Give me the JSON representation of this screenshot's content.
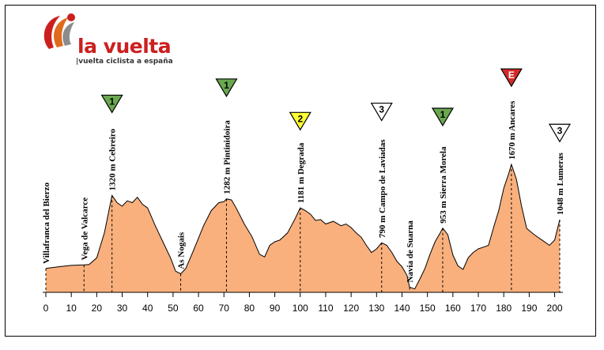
{
  "brand": {
    "name": "la vuelta",
    "tagline": "|vuelta ciclista a españa"
  },
  "chart_data": {
    "type": "area",
    "title": "",
    "xlabel": "",
    "ylabel": "",
    "xlim": [
      0,
      202
    ],
    "x_ticks": [
      0,
      10,
      20,
      30,
      40,
      50,
      60,
      70,
      80,
      90,
      100,
      110,
      120,
      130,
      140,
      150,
      160,
      170,
      180,
      190,
      200
    ],
    "fill_color": "#f9b07d",
    "line_color": "#000000",
    "profile": [
      [
        0,
        500
      ],
      [
        5,
        520
      ],
      [
        10,
        535
      ],
      [
        15,
        540
      ],
      [
        17,
        545
      ],
      [
        20,
        620
      ],
      [
        23,
        900
      ],
      [
        26,
        1320
      ],
      [
        28,
        1240
      ],
      [
        30,
        1200
      ],
      [
        32,
        1260
      ],
      [
        34,
        1240
      ],
      [
        36,
        1300
      ],
      [
        38,
        1220
      ],
      [
        40,
        1180
      ],
      [
        43,
        980
      ],
      [
        46,
        800
      ],
      [
        49,
        620
      ],
      [
        51,
        470
      ],
      [
        53,
        440
      ],
      [
        55,
        500
      ],
      [
        58,
        700
      ],
      [
        62,
        980
      ],
      [
        65,
        1150
      ],
      [
        68,
        1240
      ],
      [
        70,
        1250
      ],
      [
        71,
        1282
      ],
      [
        73,
        1270
      ],
      [
        75,
        1170
      ],
      [
        78,
        1000
      ],
      [
        81,
        860
      ],
      [
        84,
        660
      ],
      [
        86,
        630
      ],
      [
        88,
        760
      ],
      [
        90,
        800
      ],
      [
        92,
        820
      ],
      [
        95,
        900
      ],
      [
        98,
        1060
      ],
      [
        100,
        1181
      ],
      [
        102,
        1150
      ],
      [
        104,
        1110
      ],
      [
        106,
        1040
      ],
      [
        108,
        1050
      ],
      [
        110,
        1000
      ],
      [
        113,
        1030
      ],
      [
        116,
        980
      ],
      [
        118,
        1000
      ],
      [
        120,
        960
      ],
      [
        122,
        900
      ],
      [
        124,
        850
      ],
      [
        126,
        760
      ],
      [
        128,
        680
      ],
      [
        130,
        720
      ],
      [
        132,
        790
      ],
      [
        134,
        760
      ],
      [
        136,
        680
      ],
      [
        138,
        580
      ],
      [
        140,
        520
      ],
      [
        142,
        420
      ],
      [
        143,
        290
      ],
      [
        145,
        270
      ],
      [
        147,
        380
      ],
      [
        149,
        500
      ],
      [
        151,
        660
      ],
      [
        153,
        800
      ],
      [
        155,
        900
      ],
      [
        156,
        953
      ],
      [
        158,
        880
      ],
      [
        160,
        650
      ],
      [
        162,
        530
      ],
      [
        164,
        490
      ],
      [
        166,
        620
      ],
      [
        168,
        680
      ],
      [
        170,
        720
      ],
      [
        172,
        740
      ],
      [
        174,
        760
      ],
      [
        176,
        960
      ],
      [
        178,
        1150
      ],
      [
        180,
        1400
      ],
      [
        182,
        1570
      ],
      [
        183,
        1670
      ],
      [
        185,
        1500
      ],
      [
        187,
        1200
      ],
      [
        189,
        950
      ],
      [
        192,
        880
      ],
      [
        195,
        820
      ],
      [
        198,
        760
      ],
      [
        200,
        820
      ],
      [
        202,
        1048
      ]
    ],
    "places": [
      {
        "km": 0,
        "label": "Villafranca del Bierzo"
      },
      {
        "km": 15,
        "label": "Vega de Valcarce"
      },
      {
        "km": 26,
        "label": "1320 m Cebreiro",
        "category": "1"
      },
      {
        "km": 53,
        "label": "As Nogais"
      },
      {
        "km": 71,
        "label": "1282 m Pintinidoira",
        "category": "1"
      },
      {
        "km": 100,
        "label": "1181 m Degrada",
        "category": "2"
      },
      {
        "km": 132,
        "label": "790 m Campo de Laviadas",
        "category": "3"
      },
      {
        "km": 143,
        "label": "Navia de Suarna"
      },
      {
        "km": 156,
        "label": "953 m Sierra Morela",
        "category": "1"
      },
      {
        "km": 183,
        "label": "1670 m Ancares",
        "category": "E"
      },
      {
        "km": 202,
        "label": "1048 m Lumeras",
        "category": "3"
      }
    ],
    "category_colors": {
      "1": "#6aa84f",
      "2": "#ffff33",
      "3": "#ffffff",
      "E": "#d42a2a"
    },
    "grid": false,
    "legend": "none"
  }
}
